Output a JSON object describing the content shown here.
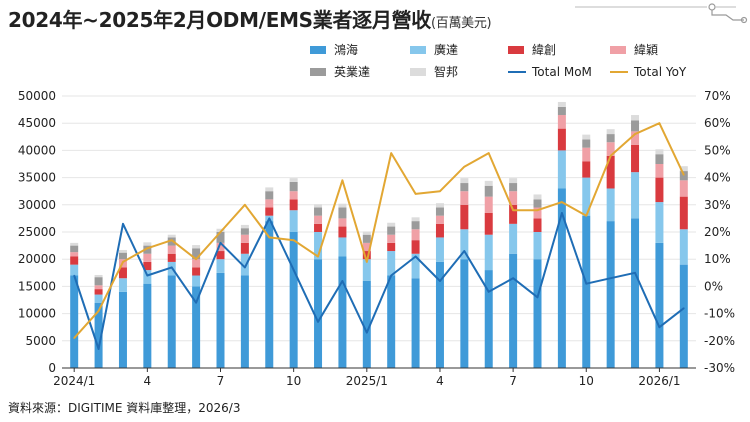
{
  "title": "2024年~2025年2月ODM/EMS業者逐月營收",
  "title_unit": "(百萬美元)",
  "source": "資料來源：DIGITIME 資料庫整理，2026/3",
  "colors": {
    "hon_hai": "#3f9ad8",
    "quanta": "#86c7ec",
    "wistron": "#d93a3f",
    "wiwynn": "#f0a0a6",
    "inventec": "#9b9b9b",
    "compal": "#dcdcdc",
    "mom": "#1f6db5",
    "yoy": "#e2a733",
    "grid": "#e6e6e6",
    "axis": "#333333"
  },
  "chart_data": {
    "type": "bar",
    "stacked": true,
    "title": "2024年~2025年2月ODM/EMS業者逐月營收",
    "subtitle": "(百萬美元)",
    "x": [
      "2024/1",
      "2",
      "3",
      "4",
      "5",
      "6",
      "7",
      "8",
      "9",
      "10",
      "11",
      "12",
      "2025/1",
      "2",
      "3",
      "4",
      "5",
      "6",
      "7",
      "8",
      "9",
      "10",
      "11",
      "12",
      "2026/1",
      "2"
    ],
    "tick_labels": [
      "2024/1",
      "",
      "",
      "4",
      "",
      "",
      "7",
      "",
      "",
      "10",
      "",
      "",
      "2025/1",
      "",
      "",
      "4",
      "",
      "",
      "7",
      "",
      "",
      "10",
      "",
      "",
      "2026/1",
      ""
    ],
    "ylim": [
      0,
      50000
    ],
    "y_ticks": [
      0,
      5000,
      10000,
      15000,
      20000,
      25000,
      30000,
      35000,
      40000,
      45000,
      50000
    ],
    "y2lim": [
      -30,
      70
    ],
    "y2_ticks": [
      -30,
      -20,
      -10,
      0,
      10,
      20,
      30,
      40,
      50,
      60,
      70
    ],
    "y2_format": "%",
    "grid": true,
    "legend_position": "top",
    "series": [
      {
        "name": "鴻海",
        "key": "hon_hai",
        "kind": "bar",
        "values": [
          17000,
          12000,
          14000,
          15500,
          17000,
          15000,
          17500,
          17000,
          27000,
          25000,
          20000,
          20500,
          16000,
          17000,
          16500,
          19500,
          20000,
          18000,
          21000,
          20000,
          33000,
          28000,
          27000,
          27500,
          23000,
          19000
        ]
      },
      {
        "name": "廣達",
        "key": "quanta",
        "kind": "bar",
        "values": [
          2000,
          1500,
          2500,
          2500,
          2500,
          2000,
          2500,
          4000,
          1000,
          4000,
          5000,
          3500,
          4000,
          4500,
          4500,
          4500,
          5500,
          6500,
          5500,
          5000,
          7000,
          7000,
          6000,
          8500,
          7500,
          6500
        ]
      },
      {
        "name": "緯創",
        "key": "wistron",
        "kind": "bar",
        "values": [
          1500,
          1000,
          2000,
          1500,
          1500,
          1500,
          1500,
          2000,
          1500,
          2000,
          1500,
          2000,
          1500,
          1500,
          2500,
          2500,
          4500,
          4000,
          3500,
          2500,
          4000,
          3000,
          6000,
          5000,
          4500,
          6000
        ]
      },
      {
        "name": "緯穎",
        "key": "wiwynn",
        "kind": "bar",
        "values": [
          800,
          700,
          1500,
          1500,
          1500,
          1500,
          1500,
          1500,
          1500,
          1500,
          1500,
          1500,
          1500,
          1500,
          2000,
          1500,
          2500,
          3000,
          2500,
          2000,
          2500,
          2500,
          2500,
          2500,
          2500,
          3000
        ]
      },
      {
        "name": "英業達",
        "key": "inventec",
        "kind": "bar",
        "values": [
          1200,
          1500,
          1200,
          1500,
          1500,
          2000,
          2000,
          1200,
          1500,
          1700,
          1500,
          2000,
          1500,
          1500,
          1500,
          1500,
          1500,
          2000,
          1500,
          1500,
          1500,
          1500,
          1500,
          2000,
          1800,
          1700
        ]
      },
      {
        "name": "智邦",
        "key": "compal",
        "kind": "bar",
        "values": [
          500,
          400,
          500,
          600,
          500,
          600,
          600,
          600,
          700,
          700,
          600,
          700,
          600,
          700,
          700,
          800,
          900,
          900,
          900,
          900,
          900,
          900,
          900,
          1000,
          900,
          900
        ]
      },
      {
        "name": "Total MoM",
        "key": "mom",
        "kind": "line",
        "axis": "y2",
        "values": [
          4,
          -23,
          23,
          4,
          7,
          -6,
          16,
          7,
          25,
          6,
          -13,
          2,
          -17,
          4,
          11,
          2,
          13,
          -2,
          3,
          -4,
          27,
          1,
          3,
          5,
          -15,
          -8
        ]
      },
      {
        "name": "Total YoY",
        "key": "yoy",
        "kind": "line",
        "axis": "y2",
        "values": [
          -19,
          -9,
          9,
          14,
          17,
          10,
          20,
          30,
          18,
          17,
          11,
          39,
          9,
          49,
          34,
          35,
          44,
          49,
          28,
          28,
          31,
          26,
          48,
          56,
          60,
          41
        ]
      }
    ]
  }
}
